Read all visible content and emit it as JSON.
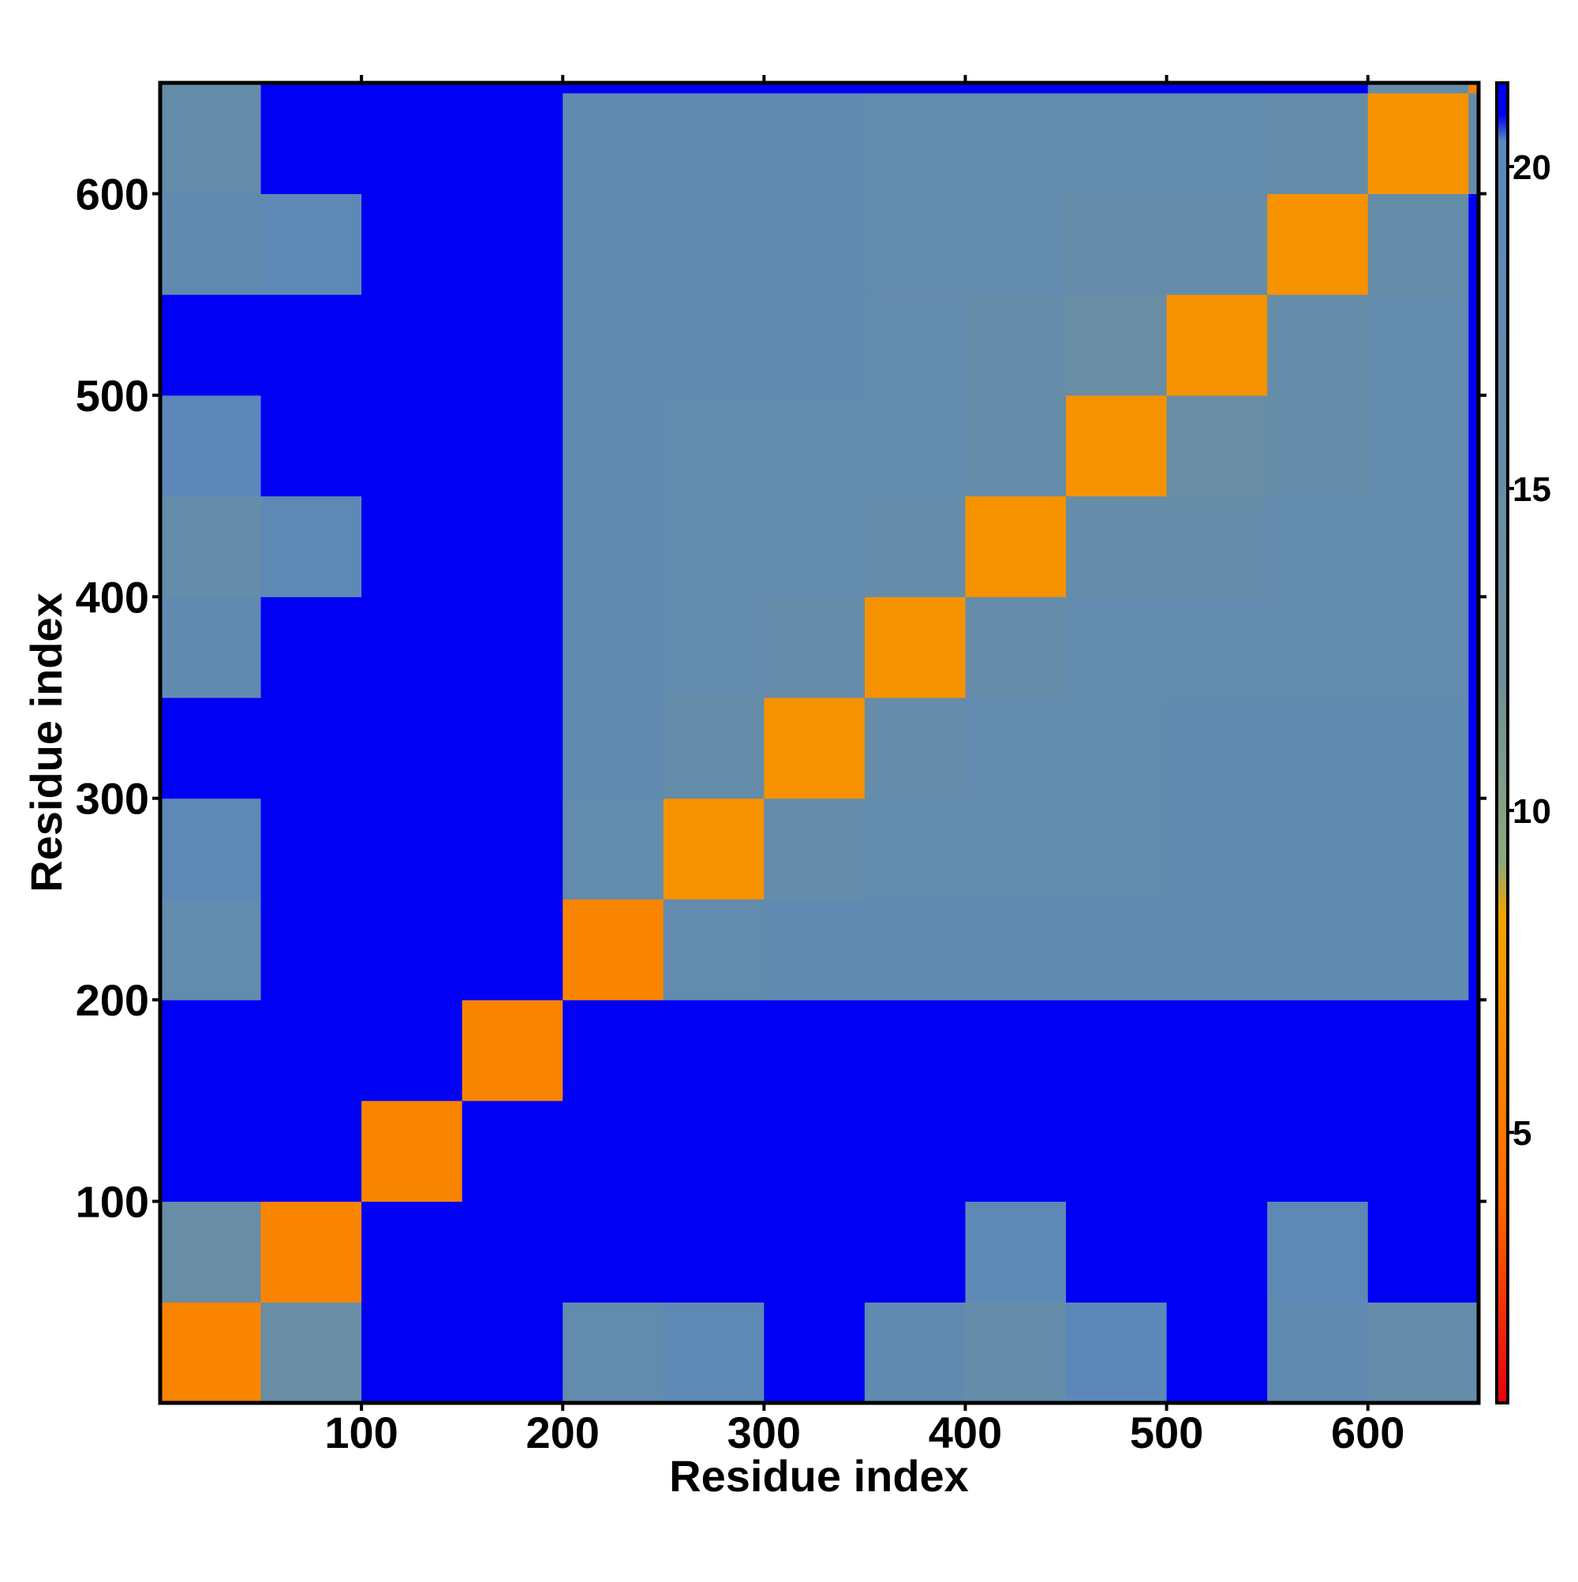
{
  "chart_data": {
    "type": "heatmap",
    "x_label": "Residue index",
    "y_label": "Residue index",
    "xlim": [
      0,
      655
    ],
    "ylim": [
      0,
      655
    ],
    "xticks": [
      100,
      200,
      300,
      400,
      500,
      600
    ],
    "yticks": [
      100,
      200,
      300,
      400,
      500,
      600
    ],
    "bins": [
      0,
      50,
      100,
      150,
      200,
      250,
      300,
      350,
      400,
      450,
      500,
      550,
      600,
      650,
      655
    ],
    "z": [
      [
        6,
        15,
        21,
        21,
        17,
        19,
        21,
        18,
        16,
        20,
        21,
        18,
        16,
        16
      ],
      [
        15,
        6,
        21,
        21,
        21,
        21,
        21,
        21,
        19,
        21,
        21,
        19,
        21,
        21
      ],
      [
        21,
        21,
        6,
        21,
        21,
        21,
        21,
        21,
        21,
        21,
        21,
        21,
        21,
        21
      ],
      [
        21,
        21,
        21,
        6,
        21,
        21,
        21,
        21,
        21,
        21,
        21,
        21,
        21,
        21
      ],
      [
        17,
        21,
        21,
        21,
        6,
        17,
        18,
        18,
        18,
        18,
        18,
        18,
        18,
        21
      ],
      [
        19,
        21,
        21,
        21,
        17,
        7,
        16,
        17,
        17,
        17,
        18,
        18,
        18,
        21
      ],
      [
        21,
        21,
        21,
        21,
        18,
        16,
        7,
        16,
        17,
        17,
        18,
        18,
        18,
        21
      ],
      [
        18,
        21,
        21,
        21,
        18,
        17,
        16,
        7,
        16,
        17,
        17,
        17,
        17,
        21
      ],
      [
        16,
        19,
        21,
        21,
        18,
        17,
        17,
        16,
        7,
        16,
        16,
        17,
        17,
        21
      ],
      [
        20,
        21,
        21,
        21,
        18,
        17,
        17,
        17,
        16,
        7,
        15,
        16,
        17,
        21
      ],
      [
        21,
        21,
        21,
        21,
        18,
        18,
        18,
        17,
        16,
        15,
        7,
        16,
        17,
        21
      ],
      [
        18,
        19,
        21,
        21,
        18,
        18,
        18,
        17,
        17,
        16,
        16,
        7,
        16,
        21
      ],
      [
        16,
        21,
        21,
        21,
        18,
        18,
        18,
        17,
        17,
        17,
        17,
        16,
        7,
        16
      ],
      [
        16,
        21,
        21,
        21,
        21,
        21,
        21,
        21,
        21,
        21,
        21,
        21,
        16,
        6
      ]
    ],
    "colorbar_lim": [
      0.8,
      21.3
    ],
    "colorbar_ticks": [
      5,
      10,
      15,
      20
    ],
    "colorscale": [
      {
        "value": 0.8,
        "color": "#e6000d"
      },
      {
        "value": 4,
        "color": "#ff6a00"
      },
      {
        "value": 8.4,
        "color": "#f2a400"
      },
      {
        "value": 9.2,
        "color": "#8da97a"
      },
      {
        "value": 12,
        "color": "#6f8f98"
      },
      {
        "value": 20.4,
        "color": "#5b88bb"
      },
      {
        "value": 20.8,
        "color": "#0000f5"
      }
    ]
  }
}
